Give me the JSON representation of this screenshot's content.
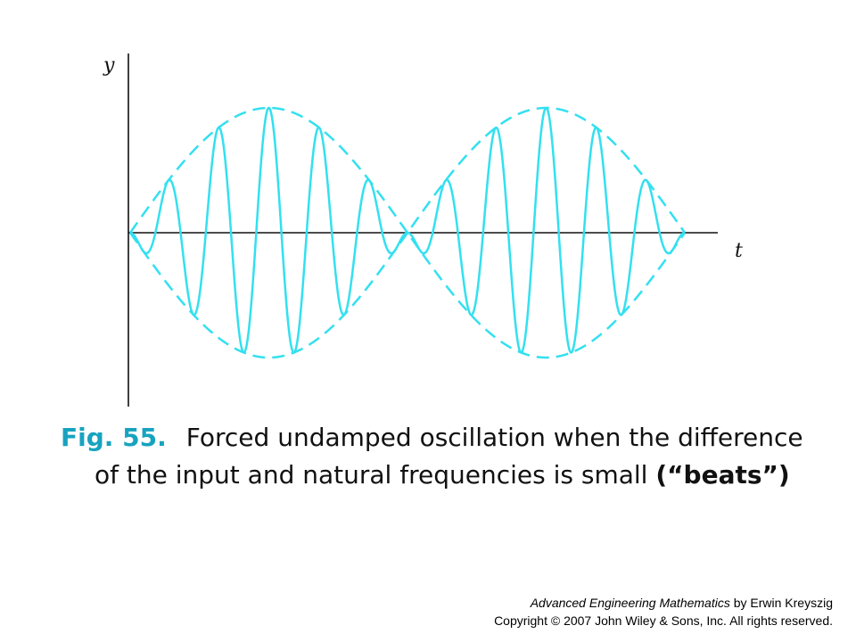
{
  "figure": {
    "axis_y_label": "y",
    "axis_x_label": "t",
    "curve_color": "#33e0f0",
    "wave": {
      "fast_cycles_per_beat": 5.5,
      "beats_shown": 2,
      "solid_curve": "y = sin(pi*t/T) * sin(2*pi*f*t)",
      "dashed_envelope": "y = +/- sin(pi*t/T)"
    }
  },
  "caption": {
    "fig_label": "Fig. 55.",
    "line1": "Forced undamped oscillation when the difference",
    "line2_prefix": "of the input and natural frequencies is small ",
    "line2_bold": "(“beats”)"
  },
  "credit": {
    "book_title": "Advanced Engineering Mathematics",
    "author": " by Erwin Kreyszig",
    "copyright": "Copyright © 2007 John Wiley & Sons, Inc.  All rights reserved."
  }
}
